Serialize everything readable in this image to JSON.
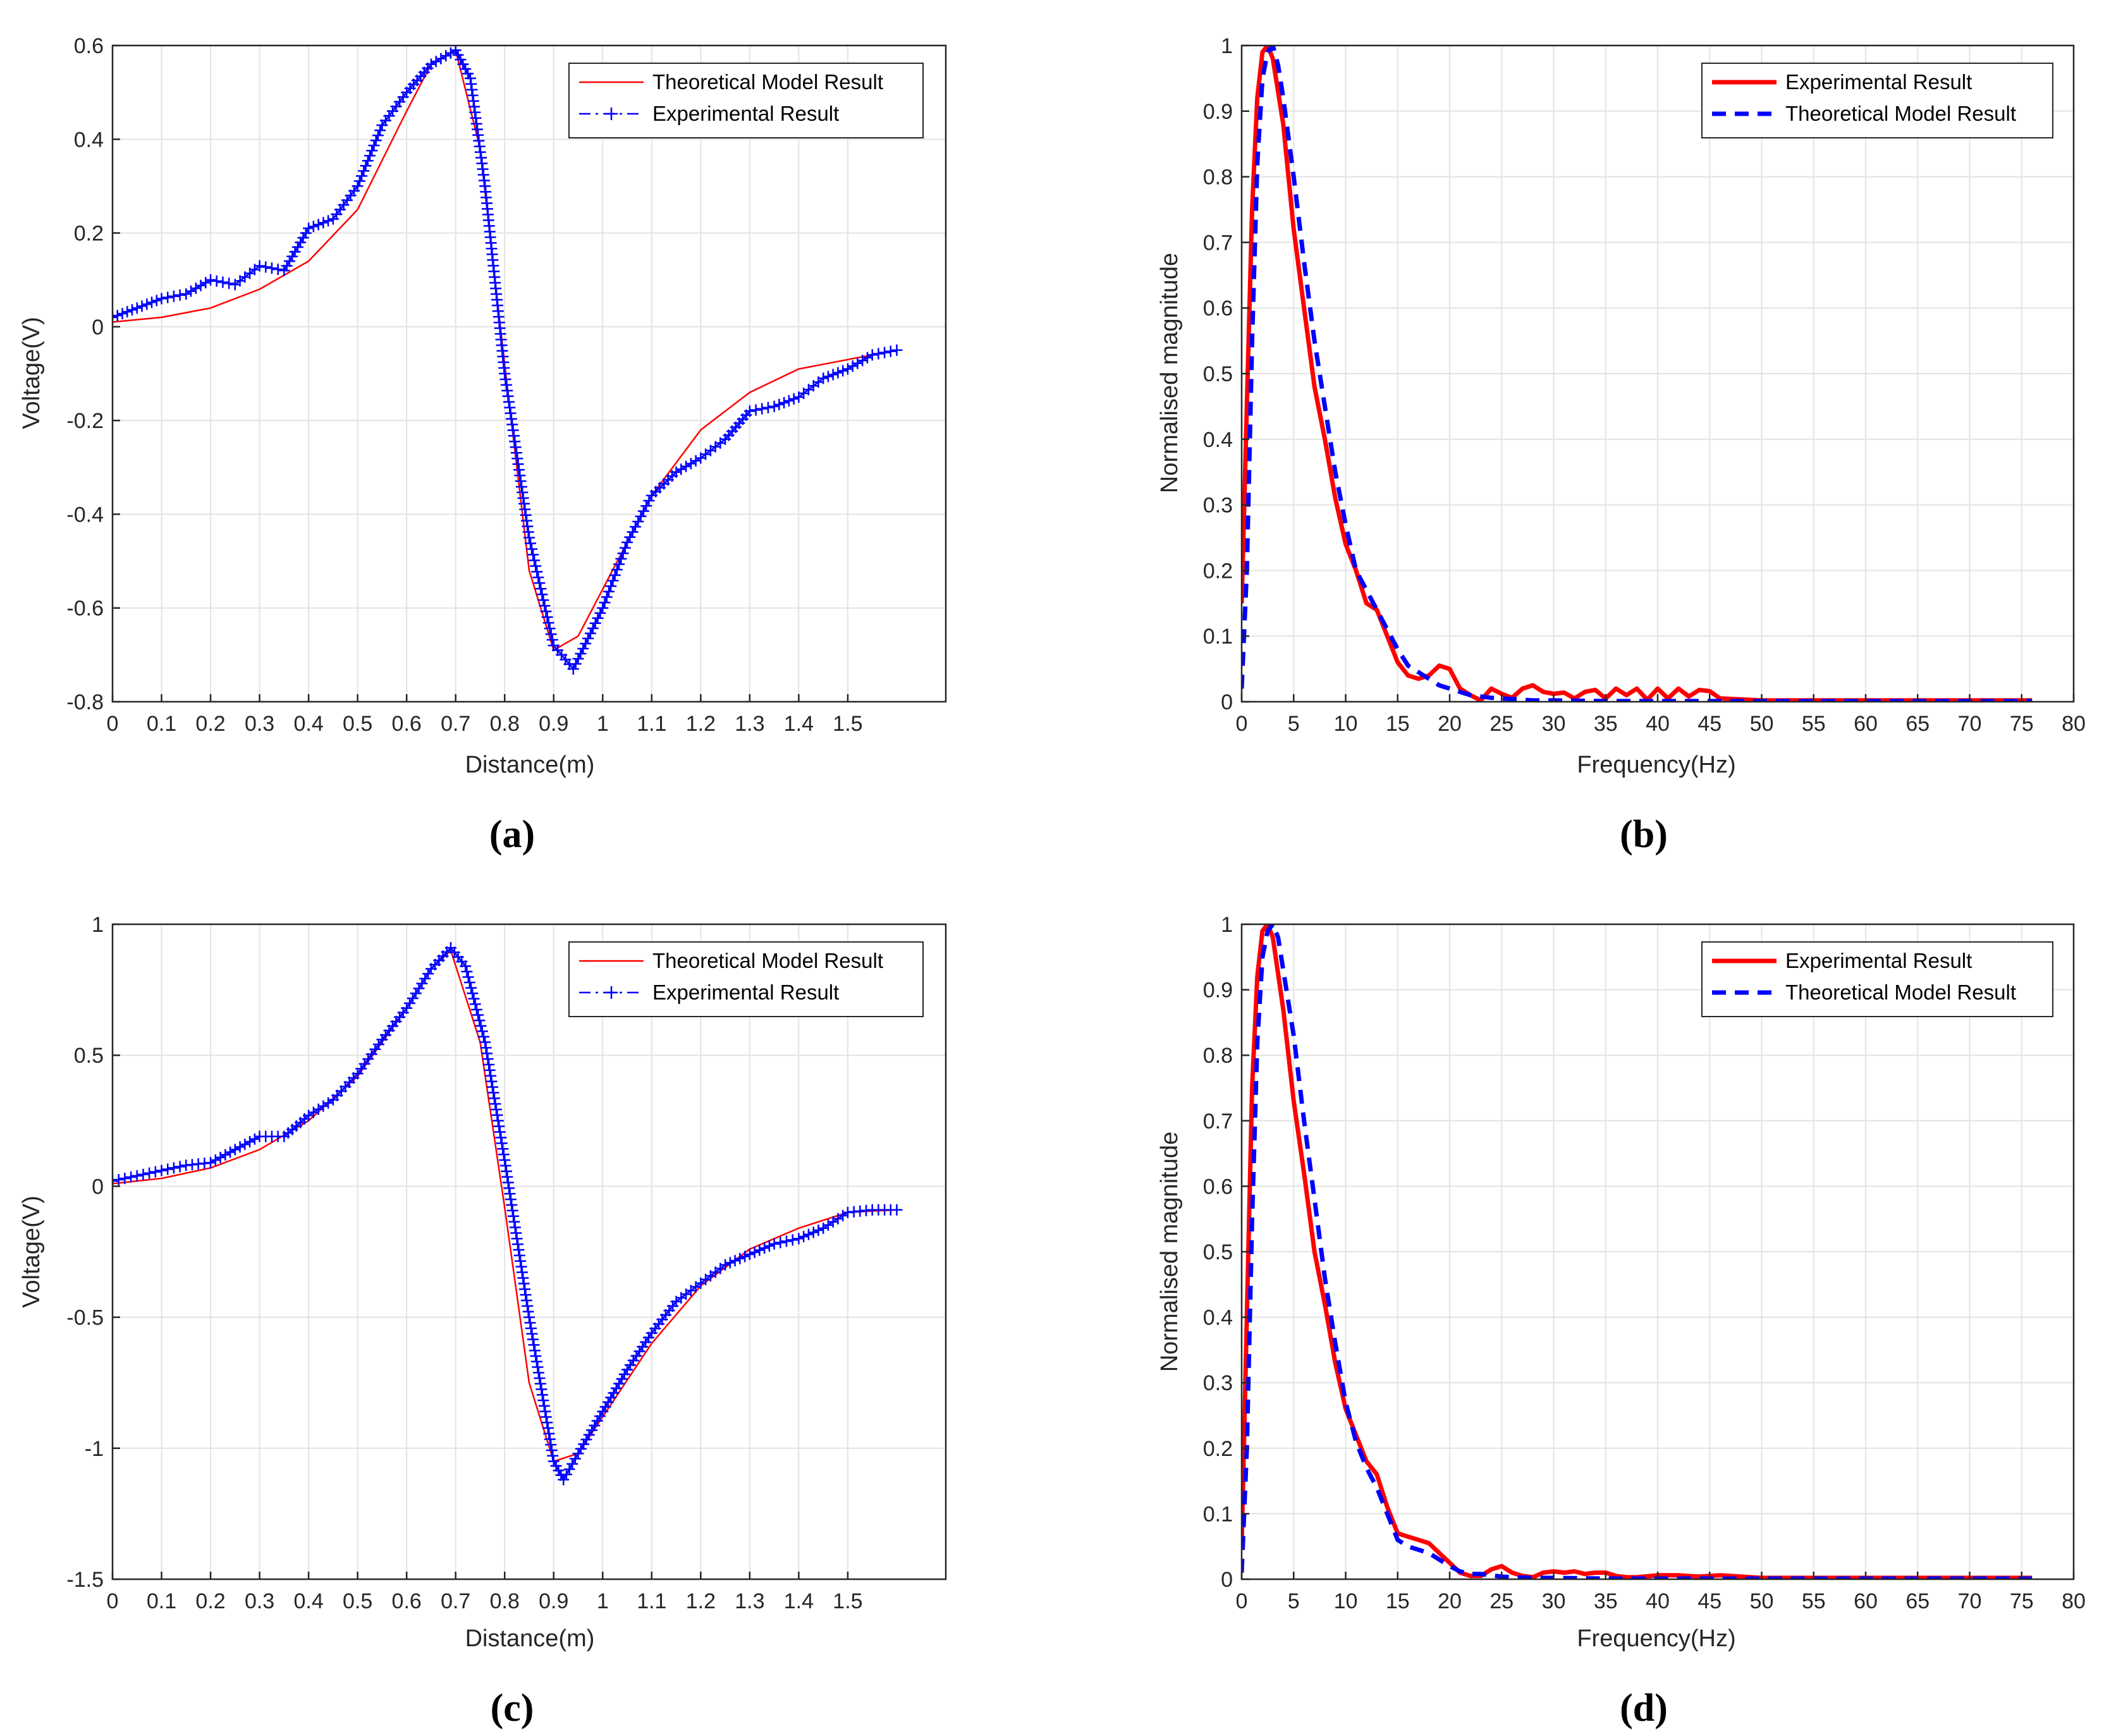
{
  "chart_data": [
    {
      "id": "a",
      "type": "line",
      "panel_label": "(a)",
      "xlabel": "Distance(m)",
      "ylabel": "Voltage(V)",
      "xlim": [
        0,
        1.7
      ],
      "ylim": [
        -0.8,
        0.6
      ],
      "xticks": [
        0,
        0.1,
        0.2,
        0.3,
        0.4,
        0.5,
        0.6,
        0.7,
        0.8,
        0.9,
        1,
        1.1,
        1.2,
        1.3,
        1.4,
        1.5
      ],
      "yticks": [
        0.6,
        0.4,
        0.2,
        0,
        -0.2,
        -0.4,
        -0.6,
        -0.8
      ],
      "xtick_labels": [
        "0",
        "0.1",
        "0.2",
        "0.3",
        "0.4",
        "0.5",
        "0.6",
        "0.7",
        "0.8",
        "0.9",
        "1",
        "1.1",
        "1.2",
        "1.3",
        "1.4",
        "1.5"
      ],
      "ytick_labels": [
        "0.6",
        "0.4",
        "0.2",
        "0",
        "-0.2",
        "-0.4",
        "-0.6",
        "-0.8"
      ],
      "legend": [
        "Theoretical Model Result",
        "Experimental Result"
      ],
      "series": [
        {
          "name": "Theoretical Model Result",
          "color": "#ff0000",
          "style": "solid",
          "x": [
            0,
            0.1,
            0.2,
            0.3,
            0.4,
            0.5,
            0.6,
            0.65,
            0.7,
            0.75,
            0.8,
            0.85,
            0.9,
            0.95,
            1.0,
            1.1,
            1.2,
            1.3,
            1.4,
            1.5,
            1.6
          ],
          "y": [
            0.01,
            0.02,
            0.04,
            0.08,
            0.14,
            0.25,
            0.46,
            0.56,
            0.59,
            0.38,
            -0.08,
            -0.52,
            -0.69,
            -0.66,
            -0.56,
            -0.36,
            -0.22,
            -0.14,
            -0.09,
            -0.07,
            -0.05
          ]
        },
        {
          "name": "Experimental Result",
          "color": "#0000ff",
          "style": "dash-dot-plus",
          "x": [
            0,
            0.05,
            0.1,
            0.15,
            0.2,
            0.25,
            0.3,
            0.35,
            0.4,
            0.45,
            0.5,
            0.55,
            0.6,
            0.65,
            0.7,
            0.73,
            0.76,
            0.8,
            0.85,
            0.9,
            0.94,
            1.0,
            1.05,
            1.1,
            1.15,
            1.2,
            1.25,
            1.3,
            1.35,
            1.4,
            1.45,
            1.5,
            1.55,
            1.6
          ],
          "y": [
            0.02,
            0.04,
            0.06,
            0.07,
            0.1,
            0.09,
            0.13,
            0.12,
            0.21,
            0.23,
            0.3,
            0.43,
            0.5,
            0.56,
            0.59,
            0.53,
            0.3,
            -0.1,
            -0.45,
            -0.68,
            -0.73,
            -0.6,
            -0.46,
            -0.36,
            -0.31,
            -0.28,
            -0.24,
            -0.18,
            -0.17,
            -0.15,
            -0.11,
            -0.09,
            -0.06,
            -0.05
          ]
        }
      ]
    },
    {
      "id": "b",
      "type": "line",
      "panel_label": "(b)",
      "xlabel": "Frequency(Hz)",
      "ylabel": "Normalised magnitude",
      "xlim": [
        0,
        80
      ],
      "ylim": [
        0,
        1
      ],
      "xticks": [
        0,
        5,
        10,
        15,
        20,
        25,
        30,
        35,
        40,
        45,
        50,
        55,
        60,
        65,
        70,
        75,
        80
      ],
      "yticks": [
        1,
        0.9,
        0.8,
        0.7,
        0.6,
        0.5,
        0.4,
        0.3,
        0.2,
        0.1,
        0
      ],
      "xtick_labels": [
        "0",
        "5",
        "10",
        "15",
        "20",
        "25",
        "30",
        "35",
        "40",
        "45",
        "50",
        "55",
        "60",
        "65",
        "70",
        "75",
        "80"
      ],
      "ytick_labels": [
        "1",
        "0.9",
        "0.8",
        "0.7",
        "0.6",
        "0.5",
        "0.4",
        "0.3",
        "0.2",
        "0.1",
        "0"
      ],
      "legend": [
        "Experimental Result",
        "Theoretical Model Result"
      ],
      "series": [
        {
          "name": "Experimental Result",
          "color": "#ff0000",
          "style": "solid-thick",
          "x": [
            0,
            0.5,
            1,
            1.5,
            2,
            2.5,
            3,
            4,
            5,
            6,
            7,
            8,
            9,
            10,
            11,
            12,
            13,
            14,
            15,
            16,
            17,
            18,
            19,
            20,
            21,
            22,
            23,
            24,
            25,
            26,
            27,
            28,
            29,
            30,
            31,
            32,
            33,
            34,
            35,
            36,
            37,
            38,
            39,
            40,
            41,
            42,
            43,
            44,
            45,
            46,
            50,
            55,
            60,
            65,
            70,
            76
          ],
          "y": [
            0.15,
            0.45,
            0.75,
            0.92,
            0.99,
            1.0,
            0.98,
            0.88,
            0.72,
            0.6,
            0.48,
            0.4,
            0.31,
            0.24,
            0.2,
            0.15,
            0.14,
            0.1,
            0.06,
            0.04,
            0.035,
            0.04,
            0.055,
            0.05,
            0.02,
            0.01,
            0.002,
            0.02,
            0.012,
            0.006,
            0.02,
            0.025,
            0.015,
            0.012,
            0.014,
            0.005,
            0.015,
            0.018,
            0.005,
            0.02,
            0.01,
            0.02,
            0.003,
            0.02,
            0.005,
            0.02,
            0.008,
            0.018,
            0.016,
            0.005,
            0.002,
            0.002,
            0.002,
            0.002,
            0.002,
            0.002
          ]
        },
        {
          "name": "Theoretical Model Result",
          "color": "#0000ff",
          "style": "dashed-thick",
          "x": [
            0,
            0.5,
            1,
            1.5,
            2,
            2.5,
            3,
            3.5,
            4,
            5,
            6,
            7,
            8,
            9,
            10,
            11,
            12,
            13,
            14,
            15,
            16,
            17,
            18,
            19,
            20,
            21,
            22,
            23,
            24,
            25,
            26,
            27,
            28,
            30,
            35,
            40,
            50,
            60,
            70,
            76
          ],
          "y": [
            0.02,
            0.2,
            0.55,
            0.82,
            0.95,
            0.99,
            1.0,
            0.97,
            0.92,
            0.8,
            0.67,
            0.55,
            0.45,
            0.35,
            0.27,
            0.2,
            0.17,
            0.14,
            0.11,
            0.08,
            0.055,
            0.045,
            0.035,
            0.025,
            0.02,
            0.015,
            0.01,
            0.008,
            0.006,
            0.005,
            0.004,
            0.003,
            0.002,
            0.002,
            0.001,
            0.001,
            0.001,
            0.001,
            0.001,
            0.001
          ]
        }
      ]
    },
    {
      "id": "c",
      "type": "line",
      "panel_label": "(c)",
      "xlabel": "Distance(m)",
      "ylabel": "Voltage(V)",
      "xlim": [
        0,
        1.7
      ],
      "ylim": [
        -1.5,
        1
      ],
      "xticks": [
        0,
        0.1,
        0.2,
        0.3,
        0.4,
        0.5,
        0.6,
        0.7,
        0.8,
        0.9,
        1,
        1.1,
        1.2,
        1.3,
        1.4,
        1.5
      ],
      "yticks": [
        1,
        0.5,
        0,
        -0.5,
        -1,
        -1.5
      ],
      "xtick_labels": [
        "0",
        "0.1",
        "0.2",
        "0.3",
        "0.4",
        "0.5",
        "0.6",
        "0.7",
        "0.8",
        "0.9",
        "1",
        "1.1",
        "1.2",
        "1.3",
        "1.4",
        "1.5"
      ],
      "ytick_labels": [
        "1",
        "0.5",
        "0",
        "-0.5",
        "-1",
        "-1.5"
      ],
      "legend": [
        "Theoretical Model Result",
        "Experimental Result"
      ],
      "series": [
        {
          "name": "Theoretical Model Result",
          "color": "#ff0000",
          "style": "solid",
          "x": [
            0,
            0.1,
            0.2,
            0.3,
            0.4,
            0.5,
            0.6,
            0.65,
            0.69,
            0.75,
            0.8,
            0.85,
            0.9,
            0.95,
            1.0,
            1.1,
            1.2,
            1.3,
            1.4,
            1.5,
            1.6
          ],
          "y": [
            0.01,
            0.03,
            0.07,
            0.14,
            0.25,
            0.42,
            0.68,
            0.83,
            0.9,
            0.55,
            -0.08,
            -0.75,
            -1.05,
            -1.02,
            -0.88,
            -0.6,
            -0.38,
            -0.24,
            -0.16,
            -0.1,
            -0.09
          ]
        },
        {
          "name": "Experimental Result",
          "color": "#0000ff",
          "style": "dash-dot-plus",
          "x": [
            0,
            0.05,
            0.1,
            0.15,
            0.2,
            0.25,
            0.3,
            0.35,
            0.4,
            0.45,
            0.5,
            0.55,
            0.6,
            0.65,
            0.69,
            0.72,
            0.76,
            0.8,
            0.85,
            0.9,
            0.92,
            0.95,
            1.0,
            1.05,
            1.1,
            1.15,
            1.2,
            1.25,
            1.3,
            1.35,
            1.4,
            1.45,
            1.5,
            1.55,
            1.6
          ],
          "y": [
            0.02,
            0.04,
            0.06,
            0.08,
            0.09,
            0.14,
            0.19,
            0.19,
            0.27,
            0.33,
            0.43,
            0.56,
            0.68,
            0.83,
            0.91,
            0.84,
            0.55,
            0.1,
            -0.5,
            -1.05,
            -1.12,
            -1.02,
            -0.86,
            -0.7,
            -0.56,
            -0.44,
            -0.37,
            -0.3,
            -0.26,
            -0.22,
            -0.2,
            -0.16,
            -0.1,
            -0.09,
            -0.09
          ]
        }
      ]
    },
    {
      "id": "d",
      "type": "line",
      "panel_label": "(d)",
      "xlabel": "Frequency(Hz)",
      "ylabel": "Normalised magnitude",
      "xlim": [
        0,
        80
      ],
      "ylim": [
        0,
        1
      ],
      "xticks": [
        0,
        5,
        10,
        15,
        20,
        25,
        30,
        35,
        40,
        45,
        50,
        55,
        60,
        65,
        70,
        75,
        80
      ],
      "yticks": [
        1,
        0.9,
        0.8,
        0.7,
        0.6,
        0.5,
        0.4,
        0.3,
        0.2,
        0.1,
        0
      ],
      "xtick_labels": [
        "0",
        "5",
        "10",
        "15",
        "20",
        "25",
        "30",
        "35",
        "40",
        "45",
        "50",
        "55",
        "60",
        "65",
        "70",
        "75",
        "80"
      ],
      "ytick_labels": [
        "1",
        "0.9",
        "0.8",
        "0.7",
        "0.6",
        "0.5",
        "0.4",
        "0.3",
        "0.2",
        "0.1",
        "0"
      ],
      "legend": [
        "Experimental Result",
        "Theoretical Model Result"
      ],
      "series": [
        {
          "name": "Experimental Result",
          "color": "#ff0000",
          "style": "solid-thick",
          "x": [
            0,
            0.5,
            1,
            1.5,
            2,
            2.5,
            3,
            4,
            5,
            6,
            7,
            8,
            9,
            10,
            11,
            12,
            13,
            14,
            15,
            16,
            17,
            18,
            19,
            20,
            21,
            22,
            23,
            24,
            25,
            26,
            27,
            28,
            29,
            30,
            31,
            32,
            33,
            34,
            35,
            36,
            37,
            38,
            40,
            42,
            44,
            46,
            50,
            55,
            60,
            65,
            70,
            76
          ],
          "y": [
            0.05,
            0.4,
            0.75,
            0.92,
            0.99,
            1.0,
            0.98,
            0.87,
            0.73,
            0.62,
            0.5,
            0.42,
            0.33,
            0.26,
            0.22,
            0.18,
            0.16,
            0.11,
            0.07,
            0.065,
            0.06,
            0.055,
            0.04,
            0.025,
            0.01,
            0.005,
            0.005,
            0.015,
            0.02,
            0.01,
            0.005,
            0.003,
            0.01,
            0.012,
            0.01,
            0.012,
            0.008,
            0.01,
            0.01,
            0.005,
            0.003,
            0.003,
            0.006,
            0.006,
            0.004,
            0.006,
            0.002,
            0.002,
            0.002,
            0.002,
            0.002,
            0.002
          ]
        },
        {
          "name": "Theoretical Model Result",
          "color": "#0000ff",
          "style": "dashed-thick",
          "x": [
            0,
            0.5,
            1,
            1.5,
            2,
            2.5,
            3,
            3.5,
            4,
            5,
            6,
            7,
            8,
            9,
            10,
            11,
            12,
            13,
            14,
            15,
            16,
            17,
            18,
            19,
            20,
            21,
            22,
            23,
            24,
            25,
            26,
            28,
            30,
            35,
            40,
            50,
            60,
            70,
            76
          ],
          "y": [
            0.01,
            0.2,
            0.55,
            0.82,
            0.95,
            0.99,
            1.0,
            0.98,
            0.93,
            0.83,
            0.7,
            0.58,
            0.46,
            0.36,
            0.27,
            0.21,
            0.17,
            0.14,
            0.1,
            0.06,
            0.05,
            0.045,
            0.04,
            0.03,
            0.02,
            0.012,
            0.008,
            0.008,
            0.006,
            0.004,
            0.003,
            0.002,
            0.002,
            0.001,
            0.001,
            0.001,
            0.001,
            0.001,
            0.001
          ]
        }
      ]
    }
  ]
}
